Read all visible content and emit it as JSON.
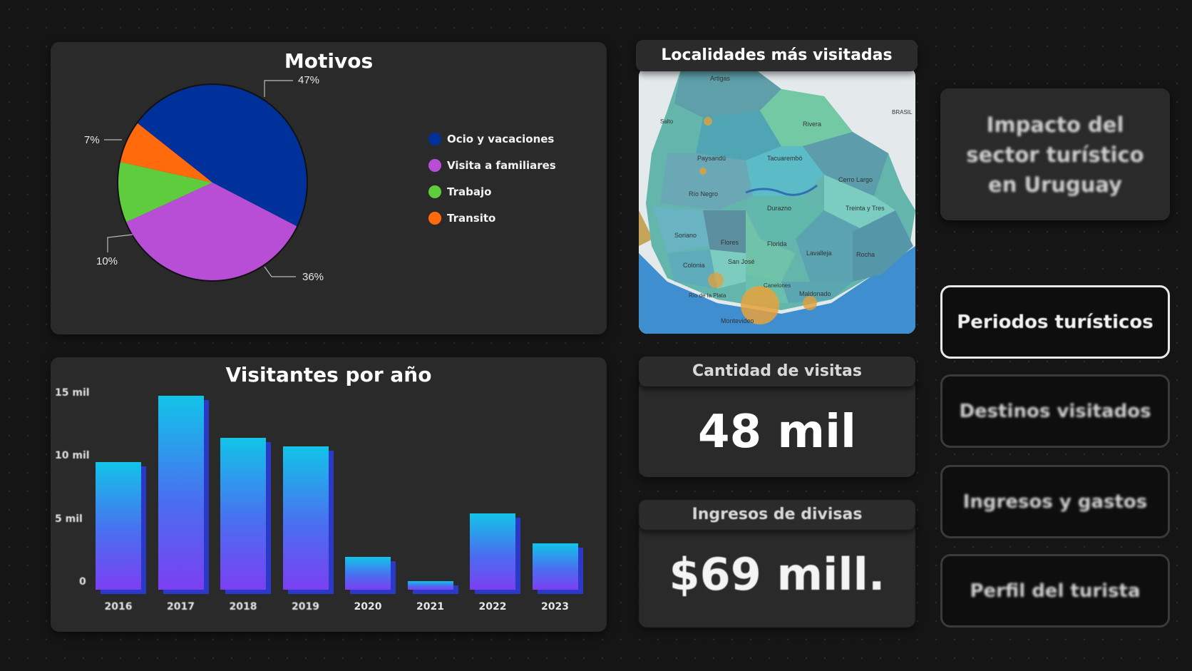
{
  "motivos": {
    "title": "Motivos",
    "colors": [
      "#00309a",
      "#b94ed6",
      "#5fcc3d",
      "#ff6a0d"
    ],
    "legend": [
      {
        "label": "Ocio y vacaciones",
        "color": "#00309a"
      },
      {
        "label": "Visita a familiares",
        "color": "#b94ed6"
      },
      {
        "label": "Trabajo",
        "color": "#5fcc3d"
      },
      {
        "label": "Transito",
        "color": "#ff6a0d"
      }
    ],
    "slice_labels": [
      "47%",
      "36%",
      "10%",
      "7%"
    ]
  },
  "visitantes": {
    "title": "Visitantes por año",
    "y_ticks": [
      "15 mil",
      "10 mil",
      "5 mil",
      "0"
    ],
    "x_ticks": [
      "2016",
      "2017",
      "2018",
      "2019",
      "2020",
      "2021",
      "2022",
      "2023"
    ]
  },
  "chart_data": [
    {
      "type": "pie",
      "title": "Motivos",
      "categories": [
        "Ocio y vacaciones",
        "Visita a familiares",
        "Trabajo",
        "Transito"
      ],
      "values": [
        47,
        36,
        10,
        7
      ]
    },
    {
      "type": "bar",
      "title": "Visitantes por año",
      "categories": [
        "2016",
        "2017",
        "2018",
        "2019",
        "2020",
        "2021",
        "2022",
        "2023"
      ],
      "values": [
        10400,
        15800,
        12400,
        11700,
        2700,
        700,
        6200,
        3800
      ],
      "ylim": [
        0,
        16000
      ],
      "y_ticks": [
        0,
        5000,
        10000,
        15000
      ]
    }
  ],
  "map": {
    "title": "Localidades más visitadas",
    "place_names": [
      "Artigas",
      "Rivera",
      "Salto",
      "Paysandú",
      "Tacuarembó",
      "Cerro Largo",
      "Río Negro",
      "Durazno",
      "Treinta y Tres",
      "Soriano",
      "Flores",
      "Florida",
      "Lavalleja",
      "Rocha",
      "Colonia",
      "San José",
      "Maldonado",
      "Canelones",
      "Río de la Plata",
      "Montevideo",
      "BRASIL"
    ]
  },
  "kpis": {
    "visitas": {
      "label": "Cantidad de visitas",
      "value": "48 mil"
    },
    "divisas": {
      "label": "Ingresos de divisas",
      "value": "$69 mill."
    }
  },
  "nav": {
    "impacto": "Impacto del sector turístico en Uruguay",
    "buttons": [
      "Periodos turísticos",
      "Destinos visitados",
      "Ingresos y gastos",
      "Perfil del turista"
    ]
  }
}
